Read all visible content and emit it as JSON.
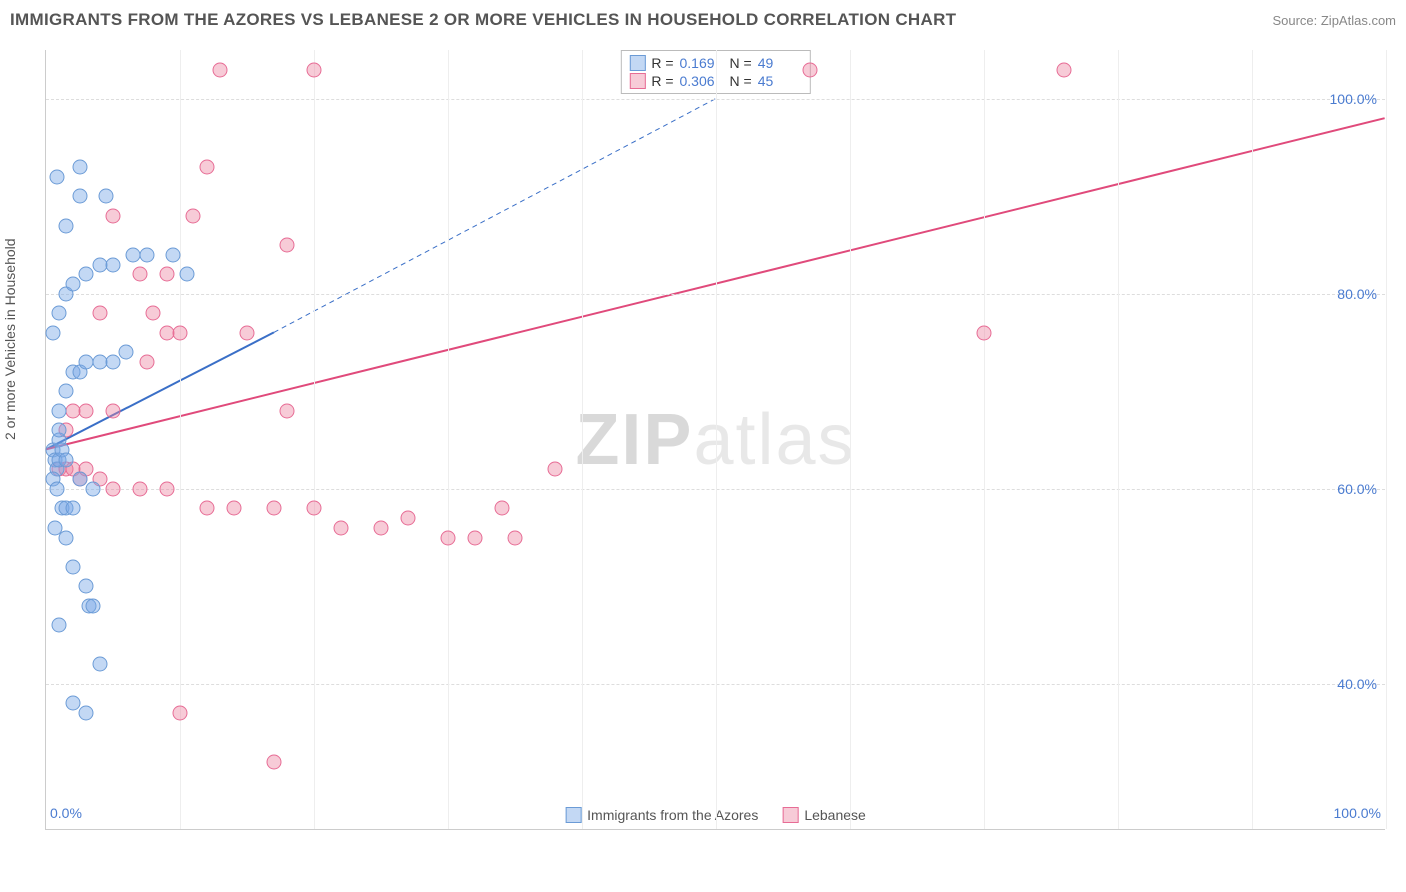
{
  "title": "IMMIGRANTS FROM THE AZORES VS LEBANESE 2 OR MORE VEHICLES IN HOUSEHOLD CORRELATION CHART",
  "source": "Source: ZipAtlas.com",
  "watermark_zip": "ZIP",
  "watermark_atlas": "atlas",
  "ylabel": "2 or more Vehicles in Household",
  "chart": {
    "type": "scatter",
    "xlim": [
      0,
      100
    ],
    "ylim": [
      25,
      105
    ],
    "xunit": "%",
    "yunit": "%",
    "background_color": "#ffffff",
    "grid_color": "#dddddd",
    "axis_color": "#cccccc",
    "tick_color": "#4a7bd0",
    "tick_fontsize": 14,
    "ylabel_fontsize": 14,
    "yticks": [
      40,
      60,
      80,
      100
    ],
    "ytick_labels": [
      "40.0%",
      "60.0%",
      "80.0%",
      "100.0%"
    ],
    "xticks_left": "0.0%",
    "xticks_right": "100.0%",
    "gridlines_v_x": [
      10,
      20,
      30,
      40,
      50,
      60,
      70,
      80,
      90,
      100
    ],
    "marker_radius": 7.5,
    "series": {
      "azores": {
        "label": "Immigrants from the Azores",
        "fill": "rgba(122,168,230,0.45)",
        "stroke": "#6b9bd6",
        "R": "0.169",
        "N": "49",
        "trend": {
          "x1": 0,
          "y1": 64,
          "x2": 17,
          "y2": 76,
          "dash_x2": 50,
          "dash_y2": 100,
          "stroke": "#3a6fc7",
          "width": 2
        },
        "points": [
          [
            0.5,
            64
          ],
          [
            0.7,
            63
          ],
          [
            0.8,
            62
          ],
          [
            1.0,
            65
          ],
          [
            1.0,
            63
          ],
          [
            0.5,
            61
          ],
          [
            0.8,
            60
          ],
          [
            1.2,
            58
          ],
          [
            1.5,
            58
          ],
          [
            2.0,
            58
          ],
          [
            0.7,
            56
          ],
          [
            1.5,
            55
          ],
          [
            2.0,
            52
          ],
          [
            3.0,
            50
          ],
          [
            3.2,
            48
          ],
          [
            3.5,
            48
          ],
          [
            1.0,
            46
          ],
          [
            4.0,
            42
          ],
          [
            2.0,
            38
          ],
          [
            3.0,
            37
          ],
          [
            1.0,
            68
          ],
          [
            1.5,
            70
          ],
          [
            2.0,
            72
          ],
          [
            2.5,
            72
          ],
          [
            3.0,
            73
          ],
          [
            4.0,
            73
          ],
          [
            5.0,
            73
          ],
          [
            6.0,
            74
          ],
          [
            0.5,
            76
          ],
          [
            1.0,
            78
          ],
          [
            1.5,
            80
          ],
          [
            2.0,
            81
          ],
          [
            3.0,
            82
          ],
          [
            4.0,
            83
          ],
          [
            5.0,
            83
          ],
          [
            6.5,
            84
          ],
          [
            7.5,
            84
          ],
          [
            9.5,
            84
          ],
          [
            10.5,
            82
          ],
          [
            2.5,
            90
          ],
          [
            4.5,
            90
          ],
          [
            1.5,
            87
          ],
          [
            0.8,
            92
          ],
          [
            2.5,
            93
          ],
          [
            1.0,
            66
          ],
          [
            1.2,
            64
          ],
          [
            1.5,
            63
          ],
          [
            2.5,
            61
          ],
          [
            3.5,
            60
          ]
        ]
      },
      "lebanese": {
        "label": "Lebanese",
        "fill": "rgba(236,130,160,0.42)",
        "stroke": "#e76c95",
        "R": "0.306",
        "N": "45",
        "trend": {
          "x1": 0,
          "y1": 64,
          "x2": 100,
          "y2": 98,
          "stroke": "#e04a7b",
          "width": 2
        },
        "points": [
          [
            1.0,
            62
          ],
          [
            1.5,
            62
          ],
          [
            2.0,
            62
          ],
          [
            2.5,
            61
          ],
          [
            3.0,
            62
          ],
          [
            4.0,
            61
          ],
          [
            5.0,
            60
          ],
          [
            7.0,
            60
          ],
          [
            9.0,
            60
          ],
          [
            12.0,
            58
          ],
          [
            14.0,
            58
          ],
          [
            17.0,
            58
          ],
          [
            20.0,
            58
          ],
          [
            22.0,
            56
          ],
          [
            25.0,
            56
          ],
          [
            27.0,
            57
          ],
          [
            30.0,
            55
          ],
          [
            32.0,
            55
          ],
          [
            34.0,
            58
          ],
          [
            35.0,
            55
          ],
          [
            38.0,
            62
          ],
          [
            1.5,
            66
          ],
          [
            3.0,
            68
          ],
          [
            5.0,
            68
          ],
          [
            7.5,
            73
          ],
          [
            9.0,
            76
          ],
          [
            10.0,
            76
          ],
          [
            4.0,
            78
          ],
          [
            7.0,
            82
          ],
          [
            9.0,
            82
          ],
          [
            11.0,
            88
          ],
          [
            18.0,
            85
          ],
          [
            12.0,
            93
          ],
          [
            5.0,
            88
          ],
          [
            8.0,
            78
          ],
          [
            10.0,
            37
          ],
          [
            17.0,
            32
          ],
          [
            13.0,
            103
          ],
          [
            20.0,
            103
          ],
          [
            57.0,
            103
          ],
          [
            76.0,
            103
          ],
          [
            70.0,
            76
          ],
          [
            15.0,
            76
          ],
          [
            18.0,
            68
          ],
          [
            2.0,
            68
          ]
        ]
      }
    },
    "legend": {
      "R_label": "R =",
      "N_label": "N ="
    }
  }
}
